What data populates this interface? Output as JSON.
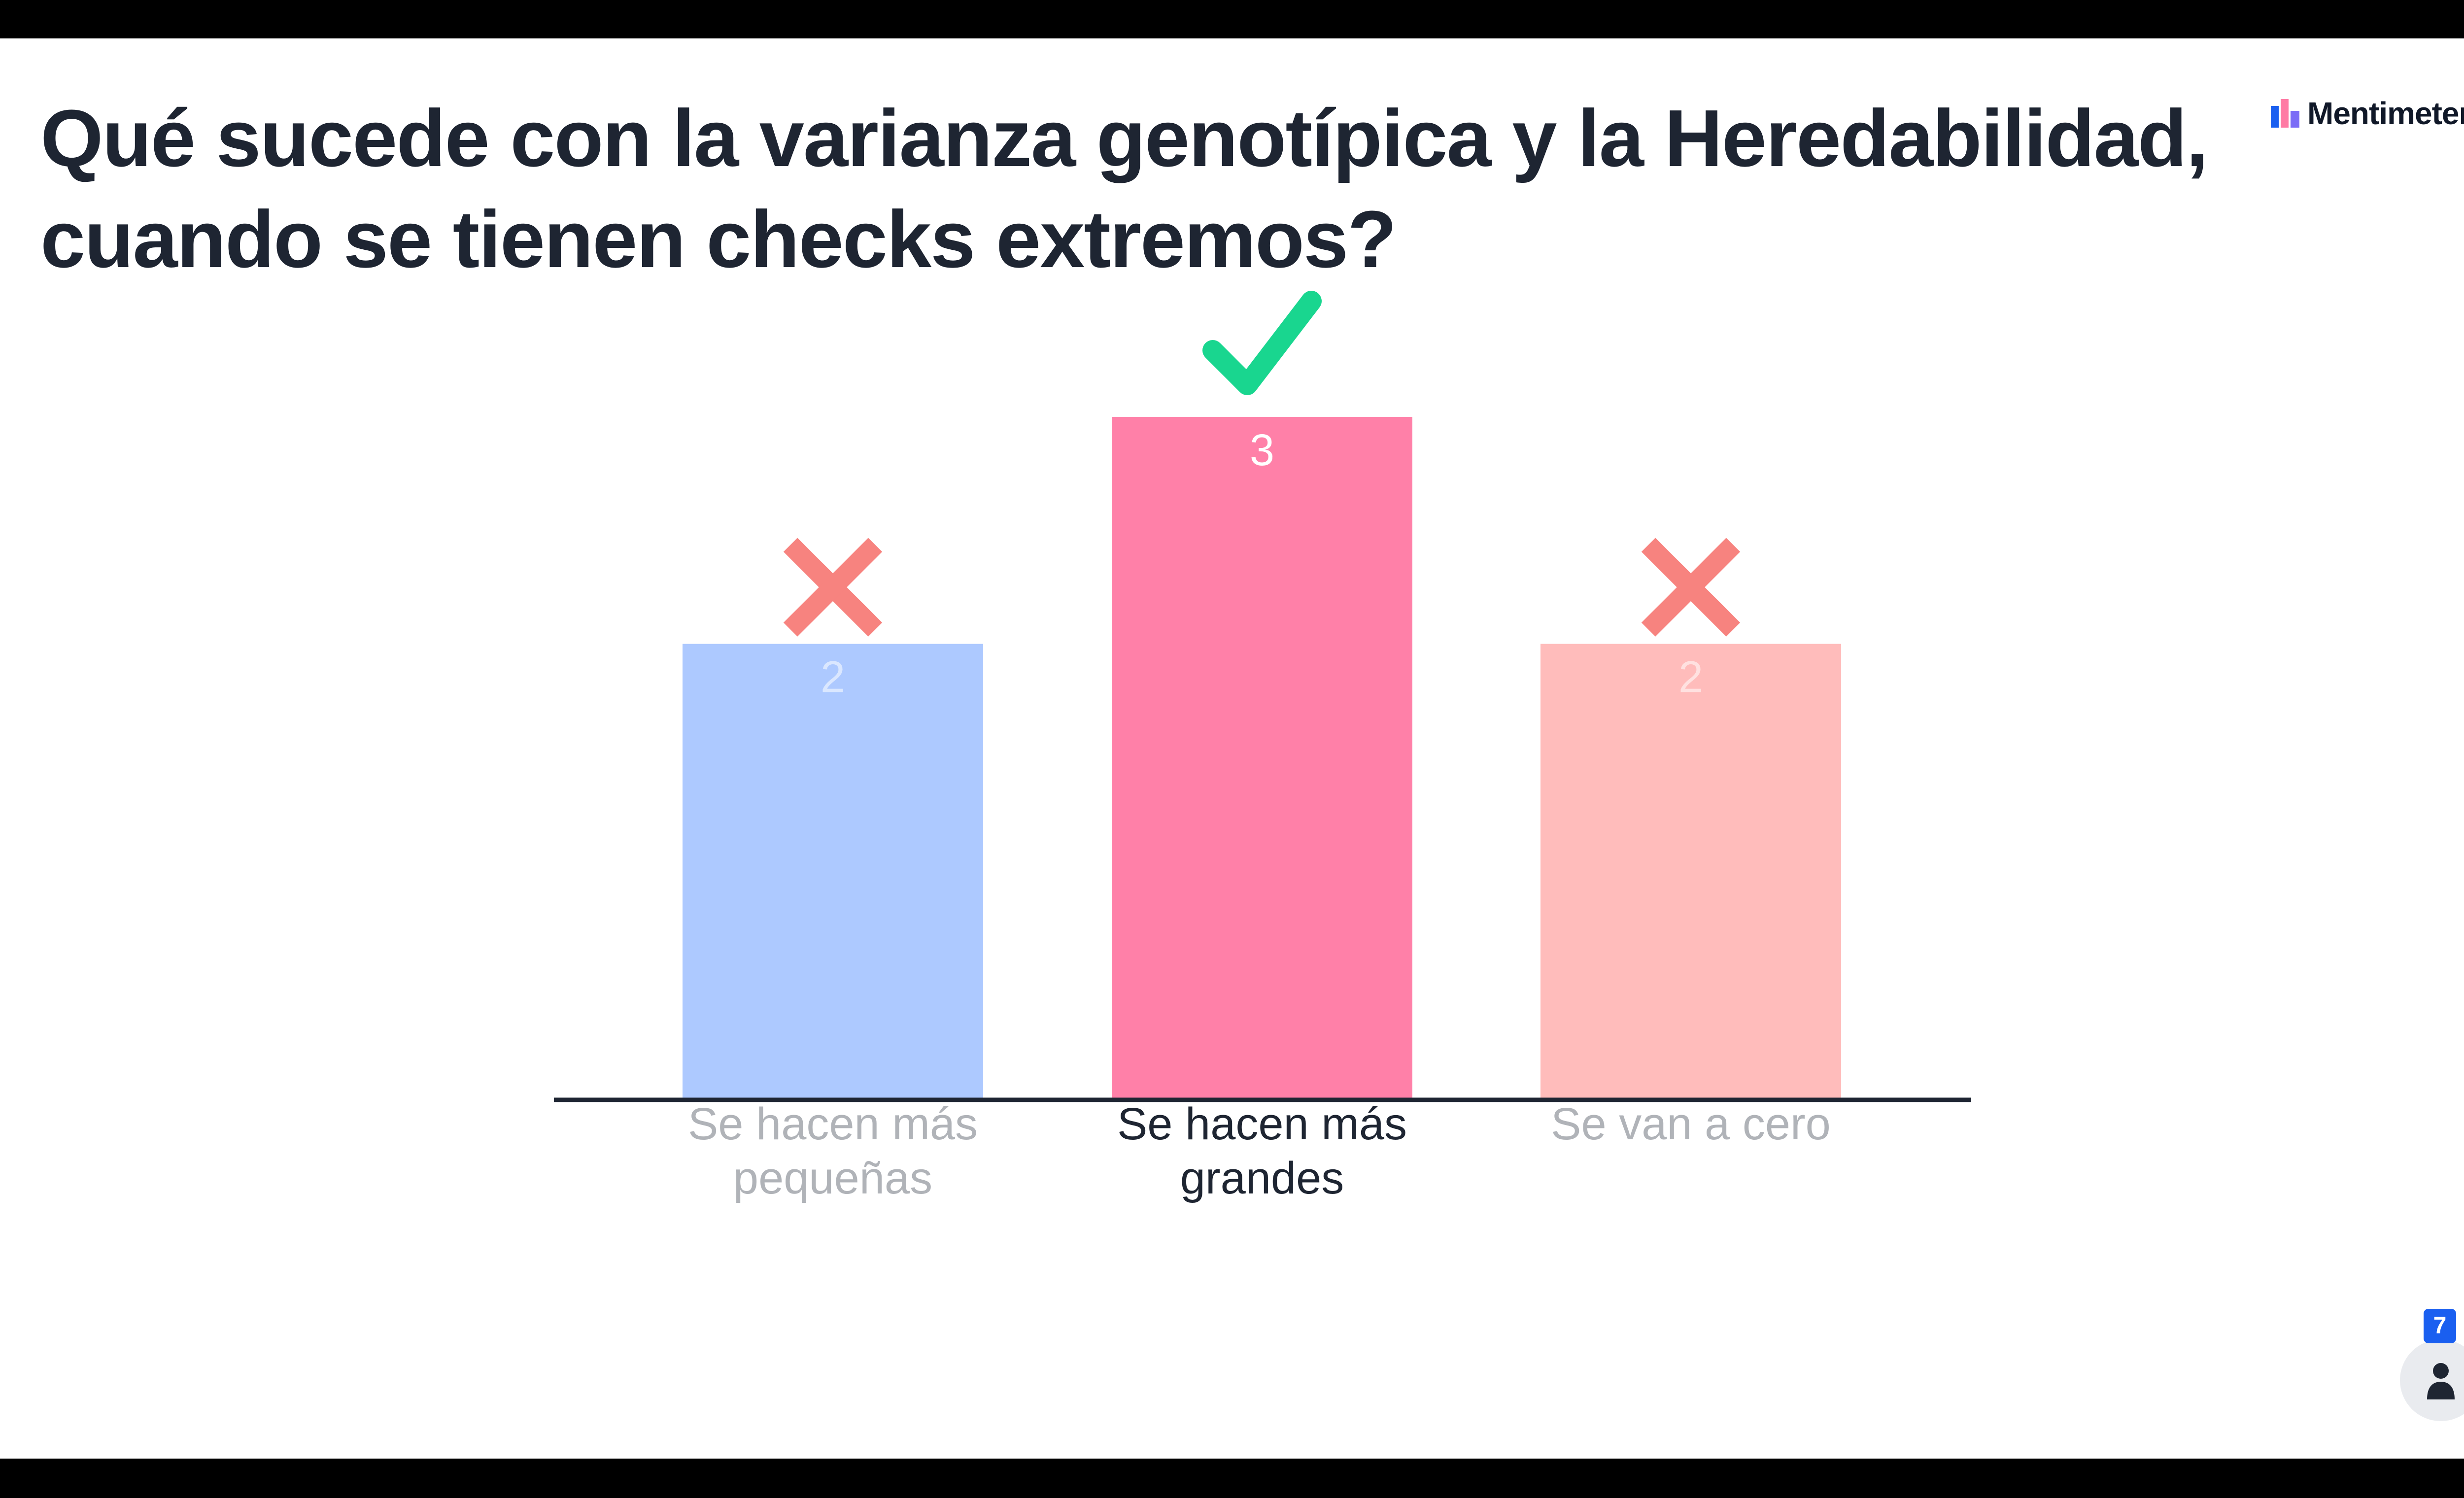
{
  "slide": {
    "question": "Qué sucede con la varianza genotípica y la Heredabilidad, cuando se tienen checks extremos?",
    "brand": "Mentimeter"
  },
  "participants": {
    "count": "7",
    "icon": "person-icon"
  },
  "colors": {
    "bar_1": "#adc9ff",
    "bar_2": "#ff80a8",
    "bar_3": "#ffbcbb",
    "correct_mark": "#19d68f",
    "wrong_mark": "#f7837f",
    "axis": "#1e2532",
    "label_correct": "#1e2532",
    "label_wrong": "#b0b3b8"
  },
  "chart_data": {
    "type": "bar",
    "title": "",
    "xlabel": "",
    "ylabel": "",
    "ylim": [
      0,
      3
    ],
    "categories": [
      "Se hacen más pequeñas",
      "Se hacen más grandes",
      "Se van a cero"
    ],
    "values": [
      2,
      3,
      2
    ],
    "correct": [
      false,
      true,
      false
    ]
  }
}
